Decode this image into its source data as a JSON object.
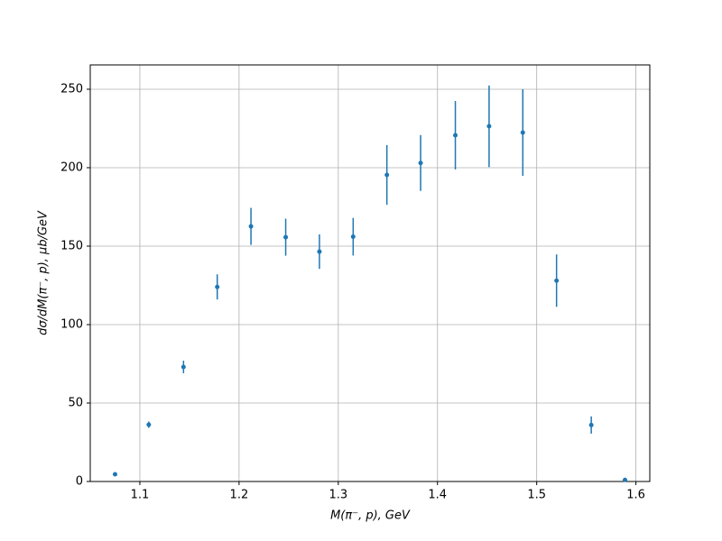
{
  "chart_data": {
    "type": "errorbar",
    "x_label": "M(π⁻, p), GeV",
    "y_label": "dσ/dM(π⁻, p), μb/GeV",
    "x": [
      1.075,
      1.109,
      1.144,
      1.178,
      1.212,
      1.247,
      1.281,
      1.315,
      1.349,
      1.383,
      1.418,
      1.452,
      1.486,
      1.52,
      1.555,
      1.589
    ],
    "values": [
      4.6,
      36.2,
      73,
      124,
      162.6,
      155.7,
      146.5,
      156,
      195.4,
      203,
      220.7,
      226.4,
      222.4,
      128,
      36,
      1
    ],
    "errors": [
      0.5,
      2,
      4,
      8,
      11.8,
      11.8,
      11,
      12,
      19,
      17.8,
      21.8,
      26,
      27.6,
      16.7,
      5.5,
      0.5
    ],
    "color": "#1f77b4",
    "xlim": [
      1.05,
      1.614
    ],
    "ylim": [
      0,
      265.5
    ],
    "xticks": [
      1.1,
      1.2,
      1.3,
      1.4,
      1.5,
      1.6
    ],
    "yticks": [
      0,
      50,
      100,
      150,
      200,
      250
    ],
    "grid": true
  }
}
